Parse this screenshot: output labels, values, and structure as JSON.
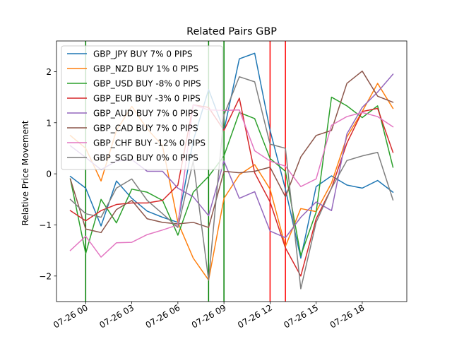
{
  "chart_data": {
    "type": "line",
    "title": "Related Pairs GBP",
    "xlabel": "",
    "ylabel": "Relative Price Movement",
    "x_start": "2023-07-25 23:00",
    "x_step_hours": 1,
    "x": [
      "07-25 23",
      "07-26 00",
      "07-26 01",
      "07-26 02",
      "07-26 03",
      "07-26 04",
      "07-26 05",
      "07-26 06",
      "07-26 07",
      "07-26 08",
      "07-26 09",
      "07-26 10",
      "07-26 11",
      "07-26 12",
      "07-26 13",
      "07-26 14",
      "07-26 15",
      "07-26 16",
      "07-26 17",
      "07-26 18",
      "07-26 19",
      "07-26 20"
    ],
    "xlim_hours": [
      -1.9,
      20.9
    ],
    "x_ticks": [
      {
        "label": "07-26 00",
        "hour": 0
      },
      {
        "label": "07-26 03",
        "hour": 3
      },
      {
        "label": "07-26 06",
        "hour": 6
      },
      {
        "label": "07-26 09",
        "hour": 9
      },
      {
        "label": "07-26 12",
        "hour": 12
      },
      {
        "label": "07-26 15",
        "hour": 15
      },
      {
        "label": "07-26 18",
        "hour": 18
      }
    ],
    "ylim": [
      -2.5,
      2.6
    ],
    "y_ticks": [
      -2,
      -1,
      0,
      1,
      2
    ],
    "grid": false,
    "legend_position": "top-left",
    "series": [
      {
        "name": "GBP_JPY BUY 7% 0 PIPS",
        "color": "#1f77b4",
        "values": [
          -0.05,
          -0.28,
          -1.02,
          -0.14,
          -0.48,
          -0.73,
          -0.85,
          -0.95,
          0.65,
          1.65,
          0.85,
          2.25,
          2.36,
          0.85,
          -0.3,
          -1.65,
          -0.25,
          -0.04,
          -0.22,
          -0.28,
          -0.13,
          -0.36
        ]
      },
      {
        "name": "GBP_NZD BUY 1% 0 PIPS",
        "color": "#ff7f0e",
        "values": [
          0.75,
          0.5,
          -0.14,
          0.85,
          1.32,
          0.88,
          0.55,
          -0.95,
          -1.65,
          -2.08,
          -0.48,
          -0.02,
          0.18,
          -0.3,
          -1.42,
          -0.68,
          -0.74,
          -0.18,
          0.72,
          1.22,
          1.77,
          1.28
        ]
      },
      {
        "name": "GBP_USD BUY -8% 0 PIPS",
        "color": "#2ca02c",
        "values": [
          -0.1,
          -1.56,
          -0.5,
          -0.96,
          -0.3,
          -0.36,
          -0.52,
          -1.2,
          -0.36,
          -0.05,
          0.35,
          1.2,
          1.08,
          0.3,
          0.05,
          -1.6,
          -0.75,
          1.5,
          1.33,
          1.1,
          1.33,
          0.13
        ]
      },
      {
        "name": "GBP_EUR BUY -3% 0 PIPS",
        "color": "#d62728",
        "values": [
          -0.72,
          -0.92,
          -0.72,
          -0.6,
          -0.57,
          -0.57,
          -0.52,
          -0.22,
          1.35,
          1.3,
          0.85,
          1.48,
          0.02,
          -0.55,
          -1.45,
          -2.0,
          -0.88,
          -0.28,
          0.6,
          1.22,
          1.28,
          0.42
        ]
      },
      {
        "name": "GBP_AUD BUY 7% 0 PIPS",
        "color": "#9467bd",
        "values": [
          0.55,
          0.32,
          0.08,
          0.25,
          0.28,
          0.05,
          0.05,
          -0.28,
          -0.45,
          -0.82,
          0.25,
          -0.48,
          -0.35,
          -1.12,
          -1.25,
          -0.85,
          -0.55,
          -0.72,
          0.78,
          1.3,
          1.6,
          1.95
        ]
      },
      {
        "name": "GBP_CAD BUY 7% 0 PIPS",
        "color": "#8c564b",
        "values": [
          -0.1,
          -1.08,
          -1.15,
          -0.7,
          -0.52,
          -0.88,
          -0.95,
          -0.98,
          -0.95,
          -1.05,
          0.05,
          0.02,
          0.05,
          0.13,
          -0.45,
          0.33,
          0.75,
          0.85,
          1.77,
          2.01,
          1.52,
          1.4
        ]
      },
      {
        "name": "GBP_CHF BUY -12% 0 PIPS",
        "color": "#e377c2",
        "values": [
          -1.5,
          -1.22,
          -1.63,
          -1.35,
          -1.34,
          -1.19,
          -1.1,
          -1.0,
          1.35,
          1.25,
          1.24,
          1.25,
          0.45,
          0.25,
          0.15,
          -0.25,
          -0.1,
          0.95,
          1.12,
          1.2,
          1.12,
          0.92
        ]
      },
      {
        "name": "GBP_SGD BUY 0% 0 PIPS",
        "color": "#7f7f7f",
        "values": [
          -0.5,
          -0.78,
          -0.85,
          -0.28,
          -0.1,
          -0.52,
          -0.78,
          -1.05,
          0.25,
          -2.08,
          1.15,
          1.9,
          1.8,
          0.58,
          0.5,
          -2.25,
          -0.95,
          -0.28,
          0.26,
          0.35,
          0.42,
          -0.51
        ]
      }
    ],
    "vertical_markers": [
      {
        "hour": 0,
        "color": "#008000"
      },
      {
        "hour": 8,
        "color": "#008000"
      },
      {
        "hour": 9,
        "color": "#008000"
      },
      {
        "hour": 12,
        "color": "#ff0000"
      },
      {
        "hour": 13,
        "color": "#ff0000"
      }
    ]
  }
}
